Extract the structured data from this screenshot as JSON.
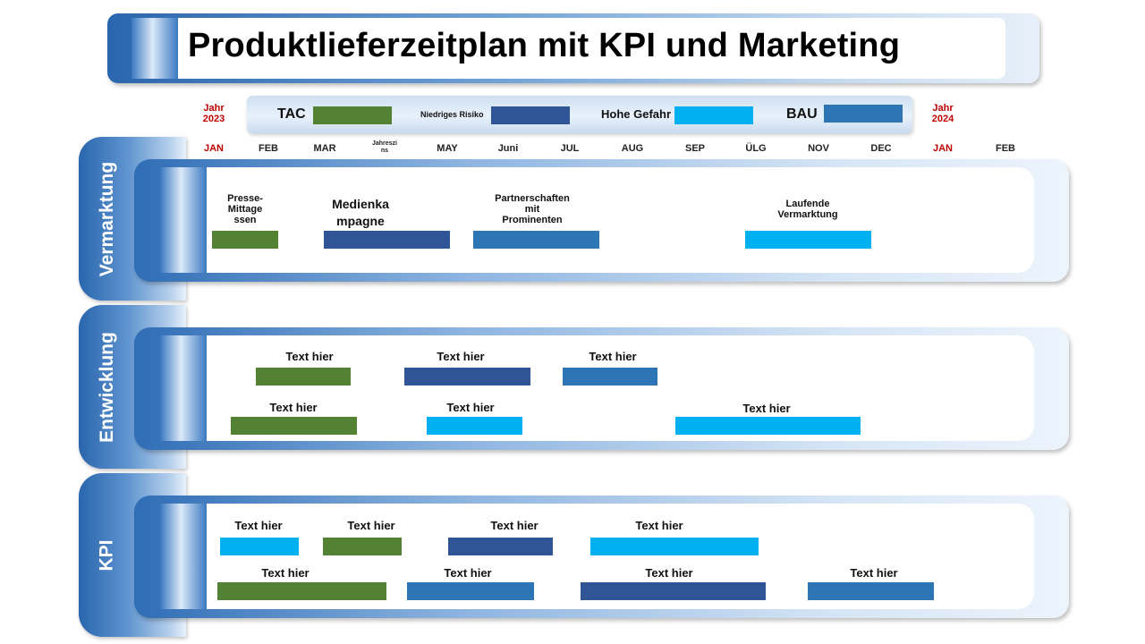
{
  "title": "Produktlieferzeitplan mit KPI und Marketing",
  "colors": {
    "green": "#548235",
    "dark_blue": "#2f5597",
    "cyan": "#00b0f0",
    "mid_blue": "#2e75b6"
  },
  "legend": {
    "tac": "TAC",
    "low_risk": "Niedriges Risiko",
    "high_risk": "Hohe Gefahr",
    "bau": "BAU"
  },
  "years": {
    "start_label": "Jahr",
    "start_year": "2023",
    "end_label": "Jahr",
    "end_year": "2024"
  },
  "months": [
    "JAN",
    "FEB",
    "MAR",
    "Jahreszins",
    "MAY",
    "Juni",
    "JUL",
    "AUG",
    "SEP",
    "ÜLG",
    "NOV",
    "DEC",
    "JAN",
    "FEB"
  ],
  "sections": {
    "marketing": "Vermarktung",
    "development": "Entwicklung",
    "kpi": "KPI"
  },
  "marketing_tasks": [
    {
      "label": "Presse-\nMittage\nssen"
    },
    {
      "label": "Medienka\nmpagne"
    },
    {
      "label": "Partnerschaften\nmit\nProminenten"
    },
    {
      "label": "Laufende\nVermarktung"
    }
  ],
  "development_tasks": [
    {
      "label": "Text hier"
    },
    {
      "label": "Text hier"
    },
    {
      "label": "Text hier"
    },
    {
      "label": "Text hier"
    },
    {
      "label": "Text hier"
    },
    {
      "label": "Text hier"
    }
  ],
  "kpi_tasks": [
    {
      "label": "Text hier"
    },
    {
      "label": "Text hier"
    },
    {
      "label": "Text hier"
    },
    {
      "label": "Text hier"
    },
    {
      "label": "Text hier"
    },
    {
      "label": "Text hier"
    },
    {
      "label": "Text hier"
    },
    {
      "label": "Text hier"
    }
  ]
}
